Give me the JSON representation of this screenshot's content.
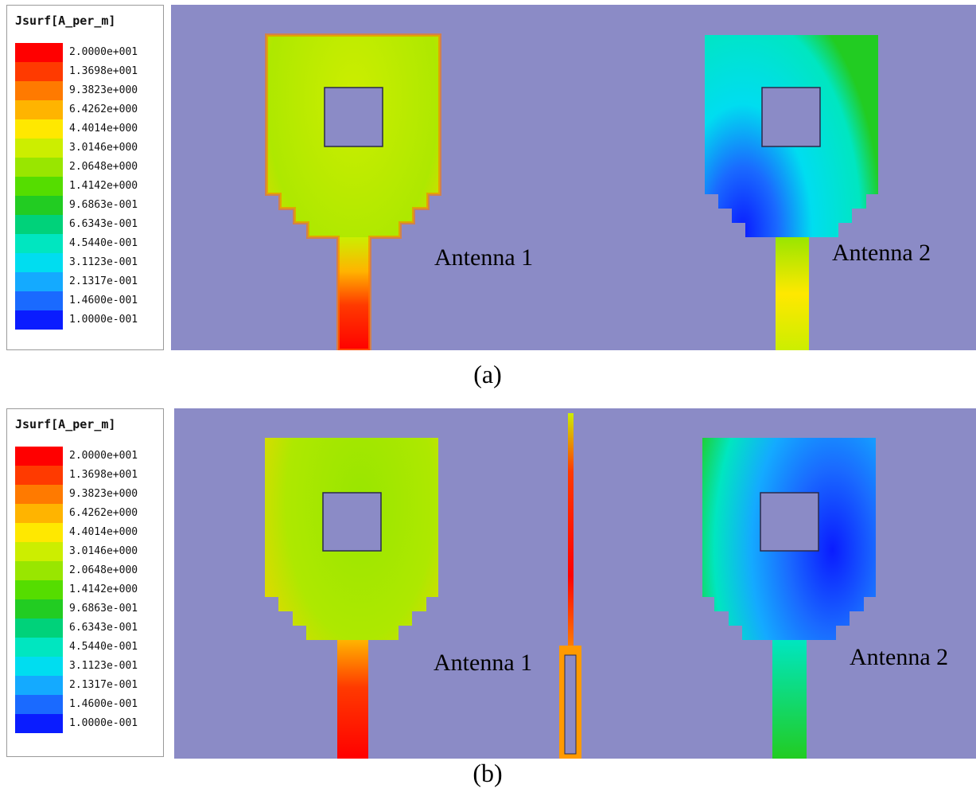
{
  "figure": {
    "panels": [
      {
        "caption": "(a)",
        "legend": {
          "title": "Jsurf[A_per_m]",
          "ticks": [
            "2.0000e+001",
            "1.3698e+001",
            "9.3823e+000",
            "6.4262e+000",
            "4.4014e+000",
            "3.0146e+000",
            "2.0648e+000",
            "1.4142e+000",
            "9.6863e-001",
            "6.6343e-001",
            "4.5440e-001",
            "3.1123e-001",
            "2.1317e-001",
            "1.4600e-001",
            "1.0000e-001"
          ],
          "colors": [
            "#ff0000",
            "#ff3a00",
            "#ff7a00",
            "#ffb400",
            "#ffe800",
            "#ccee00",
            "#99e600",
            "#55dd00",
            "#22cc22",
            "#00d27a",
            "#00e6c0",
            "#00ddf0",
            "#14aaff",
            "#1a6aff",
            "#0a1cff"
          ]
        },
        "labels": {
          "antenna1": "Antenna 1",
          "antenna2": "Antenna 2"
        }
      },
      {
        "caption": "(b)",
        "legend": {
          "title": "Jsurf[A_per_m]",
          "ticks": [
            "2.0000e+001",
            "1.3698e+001",
            "9.3823e+000",
            "6.4262e+000",
            "4.4014e+000",
            "3.0146e+000",
            "2.0648e+000",
            "1.4142e+000",
            "9.6863e-001",
            "6.6343e-001",
            "4.5440e-001",
            "3.1123e-001",
            "2.1317e-001",
            "1.4600e-001",
            "1.0000e-001"
          ],
          "colors": [
            "#ff0000",
            "#ff3a00",
            "#ff7a00",
            "#ffb400",
            "#ffe800",
            "#ccee00",
            "#99e600",
            "#55dd00",
            "#22cc22",
            "#00d27a",
            "#00e6c0",
            "#00ddf0",
            "#14aaff",
            "#1a6aff",
            "#0a1cff"
          ]
        },
        "labels": {
          "antenna1": "Antenna 1",
          "antenna2": "Antenna 2"
        }
      }
    ],
    "colors": {
      "background": "#8b8bc6",
      "slot": "#8a8ac4"
    }
  }
}
